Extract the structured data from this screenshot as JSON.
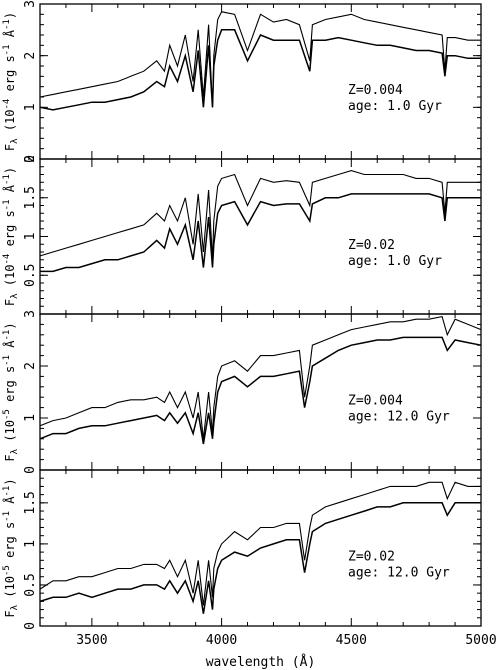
{
  "chart_data": [
    {
      "type": "line",
      "xlim": [
        3300,
        5000
      ],
      "ylim": [
        0,
        3
      ],
      "yticks": [
        "0",
        "1",
        "2",
        "3"
      ],
      "ylabel": "F_λ (10^-4 erg s^-1 Å^-1)",
      "annotation": [
        "Z=0.004",
        "age:  1.0 Gyr"
      ],
      "series": [
        {
          "x": [
            3300,
            3350,
            3400,
            3450,
            3500,
            3550,
            3600,
            3650,
            3700,
            3750,
            3780,
            3800,
            3830,
            3860,
            3890,
            3910,
            3930,
            3950,
            3965,
            3970,
            3985,
            4000,
            4050,
            4100,
            4150,
            4200,
            4250,
            4300,
            4340,
            4350,
            4400,
            4450,
            4500,
            4550,
            4600,
            4650,
            4700,
            4750,
            4800,
            4850,
            4861,
            4870,
            4900,
            4950,
            5000
          ],
          "y": [
            1.2,
            1.25,
            1.3,
            1.35,
            1.4,
            1.45,
            1.5,
            1.6,
            1.7,
            1.9,
            1.7,
            2.2,
            1.8,
            2.4,
            1.5,
            2.5,
            1.2,
            2.6,
            1.0,
            2.0,
            2.7,
            2.85,
            2.8,
            2.1,
            2.8,
            2.65,
            2.7,
            2.6,
            1.9,
            2.6,
            2.7,
            2.75,
            2.8,
            2.7,
            2.65,
            2.6,
            2.55,
            2.5,
            2.45,
            2.4,
            1.7,
            2.35,
            2.35,
            2.3,
            2.3
          ]
        },
        {
          "x": [
            3300,
            3350,
            3400,
            3450,
            3500,
            3550,
            3600,
            3650,
            3700,
            3750,
            3780,
            3800,
            3830,
            3860,
            3890,
            3910,
            3930,
            3950,
            3965,
            3970,
            3985,
            4000,
            4050,
            4100,
            4150,
            4200,
            4250,
            4300,
            4340,
            4350,
            4400,
            4450,
            4500,
            4550,
            4600,
            4650,
            4700,
            4750,
            4800,
            4850,
            4861,
            4870,
            4900,
            4950,
            5000
          ],
          "y": [
            1.0,
            0.95,
            1.0,
            1.05,
            1.1,
            1.1,
            1.15,
            1.2,
            1.3,
            1.5,
            1.4,
            1.8,
            1.5,
            2.0,
            1.3,
            2.1,
            1.0,
            2.2,
            1.0,
            1.8,
            2.3,
            2.5,
            2.5,
            1.9,
            2.4,
            2.3,
            2.3,
            2.3,
            1.7,
            2.3,
            2.3,
            2.35,
            2.3,
            2.25,
            2.2,
            2.2,
            2.15,
            2.1,
            2.1,
            2.05,
            1.6,
            2.0,
            2.0,
            1.95,
            1.95
          ]
        }
      ]
    },
    {
      "type": "line",
      "xlim": [
        3300,
        5000
      ],
      "ylim": [
        0,
        2
      ],
      "yticks": [
        "0.5",
        "1",
        "1.5",
        "2"
      ],
      "ylabel": "F_λ (10^-4 erg s^-1 Å^-1)",
      "annotation": [
        "Z=0.02",
        "age:  1.0 Gyr"
      ],
      "series": [
        {
          "x": [
            3300,
            3350,
            3400,
            3450,
            3500,
            3550,
            3600,
            3650,
            3700,
            3750,
            3780,
            3800,
            3830,
            3860,
            3890,
            3910,
            3930,
            3950,
            3965,
            3970,
            3985,
            4000,
            4050,
            4100,
            4150,
            4200,
            4250,
            4300,
            4340,
            4350,
            4400,
            4450,
            4500,
            4550,
            4600,
            4650,
            4700,
            4750,
            4800,
            4850,
            4861,
            4870,
            4900,
            4950,
            5000
          ],
          "y": [
            0.75,
            0.8,
            0.85,
            0.9,
            0.95,
            1.0,
            1.05,
            1.1,
            1.15,
            1.3,
            1.2,
            1.4,
            1.2,
            1.5,
            0.9,
            1.55,
            0.8,
            1.6,
            0.7,
            1.2,
            1.65,
            1.75,
            1.8,
            1.4,
            1.75,
            1.7,
            1.72,
            1.7,
            1.4,
            1.7,
            1.75,
            1.8,
            1.85,
            1.8,
            1.8,
            1.8,
            1.8,
            1.75,
            1.75,
            1.7,
            1.3,
            1.7,
            1.7,
            1.7,
            1.7
          ]
        },
        {
          "x": [
            3300,
            3350,
            3400,
            3450,
            3500,
            3550,
            3600,
            3650,
            3700,
            3750,
            3780,
            3800,
            3830,
            3860,
            3890,
            3910,
            3930,
            3950,
            3965,
            3970,
            3985,
            4000,
            4050,
            4100,
            4150,
            4200,
            4250,
            4300,
            4340,
            4350,
            4400,
            4450,
            4500,
            4550,
            4600,
            4650,
            4700,
            4750,
            4800,
            4850,
            4861,
            4870,
            4900,
            4950,
            5000
          ],
          "y": [
            0.55,
            0.55,
            0.6,
            0.6,
            0.65,
            0.7,
            0.7,
            0.75,
            0.8,
            0.95,
            0.85,
            1.1,
            0.9,
            1.15,
            0.7,
            1.2,
            0.6,
            1.25,
            0.6,
            0.9,
            1.3,
            1.4,
            1.45,
            1.15,
            1.45,
            1.4,
            1.42,
            1.42,
            1.2,
            1.42,
            1.5,
            1.5,
            1.55,
            1.55,
            1.55,
            1.55,
            1.55,
            1.55,
            1.55,
            1.5,
            1.2,
            1.5,
            1.5,
            1.5,
            1.5
          ]
        }
      ]
    },
    {
      "type": "line",
      "xlim": [
        3300,
        5000
      ],
      "ylim": [
        0,
        3
      ],
      "yticks": [
        "0",
        "1",
        "2",
        "3"
      ],
      "ylabel": "F_λ (10^-5 erg s^-1 Å^-1)",
      "annotation": [
        "Z=0.004",
        "age: 12.0 Gyr"
      ],
      "series": [
        {
          "x": [
            3300,
            3350,
            3400,
            3450,
            3500,
            3550,
            3600,
            3650,
            3700,
            3750,
            3780,
            3800,
            3830,
            3860,
            3890,
            3910,
            3930,
            3950,
            3965,
            3970,
            3985,
            4000,
            4050,
            4100,
            4150,
            4200,
            4250,
            4300,
            4320,
            4340,
            4350,
            4400,
            4450,
            4500,
            4550,
            4600,
            4650,
            4700,
            4750,
            4800,
            4850,
            4870,
            4900,
            4950,
            5000
          ],
          "y": [
            0.85,
            0.95,
            1.0,
            1.1,
            1.2,
            1.2,
            1.3,
            1.35,
            1.35,
            1.4,
            1.3,
            1.5,
            1.2,
            1.5,
            1.0,
            1.5,
            0.6,
            1.5,
            0.7,
            1.2,
            1.8,
            2.0,
            2.1,
            1.9,
            2.2,
            2.2,
            2.25,
            2.3,
            1.4,
            2.0,
            2.4,
            2.5,
            2.6,
            2.7,
            2.75,
            2.8,
            2.85,
            2.85,
            2.9,
            2.9,
            2.95,
            2.6,
            2.9,
            2.8,
            2.7
          ]
        },
        {
          "x": [
            3300,
            3350,
            3400,
            3450,
            3500,
            3550,
            3600,
            3650,
            3700,
            3750,
            3780,
            3800,
            3830,
            3860,
            3890,
            3910,
            3930,
            3950,
            3965,
            3970,
            3985,
            4000,
            4050,
            4100,
            4150,
            4200,
            4250,
            4300,
            4320,
            4340,
            4350,
            4400,
            4450,
            4500,
            4550,
            4600,
            4650,
            4700,
            4750,
            4800,
            4850,
            4870,
            4900,
            4950,
            5000
          ],
          "y": [
            0.6,
            0.7,
            0.7,
            0.8,
            0.85,
            0.85,
            0.9,
            0.95,
            1.0,
            1.05,
            0.95,
            1.1,
            0.9,
            1.1,
            0.7,
            1.1,
            0.5,
            1.1,
            0.6,
            0.9,
            1.5,
            1.7,
            1.8,
            1.6,
            1.8,
            1.8,
            1.85,
            1.9,
            1.2,
            1.7,
            2.0,
            2.15,
            2.3,
            2.4,
            2.45,
            2.5,
            2.5,
            2.55,
            2.55,
            2.55,
            2.55,
            2.3,
            2.5,
            2.45,
            2.4
          ]
        }
      ]
    },
    {
      "type": "line",
      "xlim": [
        3300,
        5000
      ],
      "ylim": [
        0,
        1.9
      ],
      "yticks": [
        "0",
        "0.5",
        "1",
        "1.5"
      ],
      "xticks": [
        "3500",
        "4000",
        "4500",
        "5000"
      ],
      "ylabel": "F_λ (10^-5 erg s^-1 Å^-1)",
      "xlabel": "wavelength (Å)",
      "annotation": [
        "Z=0.02",
        "age: 12.0 Gyr"
      ],
      "series": [
        {
          "x": [
            3300,
            3350,
            3400,
            3450,
            3500,
            3550,
            3600,
            3650,
            3700,
            3750,
            3780,
            3800,
            3830,
            3860,
            3890,
            3910,
            3930,
            3950,
            3965,
            3970,
            3985,
            4000,
            4050,
            4100,
            4150,
            4200,
            4250,
            4300,
            4320,
            4340,
            4350,
            4400,
            4450,
            4500,
            4550,
            4600,
            4650,
            4700,
            4750,
            4800,
            4850,
            4870,
            4900,
            4950,
            5000
          ],
          "y": [
            0.45,
            0.55,
            0.55,
            0.6,
            0.6,
            0.65,
            0.7,
            0.7,
            0.75,
            0.75,
            0.7,
            0.8,
            0.6,
            0.8,
            0.4,
            0.8,
            0.25,
            0.8,
            0.35,
            0.7,
            0.9,
            1.0,
            1.15,
            1.05,
            1.2,
            1.2,
            1.25,
            1.25,
            0.8,
            1.2,
            1.35,
            1.45,
            1.5,
            1.55,
            1.6,
            1.65,
            1.7,
            1.7,
            1.7,
            1.75,
            1.75,
            1.55,
            1.75,
            1.7,
            1.7
          ]
        },
        {
          "x": [
            3300,
            3350,
            3400,
            3450,
            3500,
            3550,
            3600,
            3650,
            3700,
            3750,
            3780,
            3800,
            3830,
            3860,
            3890,
            3910,
            3930,
            3950,
            3965,
            3970,
            3985,
            4000,
            4050,
            4100,
            4150,
            4200,
            4250,
            4300,
            4320,
            4340,
            4350,
            4400,
            4450,
            4500,
            4550,
            4600,
            4650,
            4700,
            4750,
            4800,
            4850,
            4870,
            4900,
            4950,
            5000
          ],
          "y": [
            0.3,
            0.35,
            0.35,
            0.4,
            0.35,
            0.4,
            0.45,
            0.45,
            0.5,
            0.5,
            0.45,
            0.55,
            0.4,
            0.55,
            0.3,
            0.55,
            0.15,
            0.55,
            0.2,
            0.45,
            0.7,
            0.8,
            0.9,
            0.85,
            0.95,
            1.0,
            1.05,
            1.05,
            0.65,
            1.0,
            1.15,
            1.25,
            1.3,
            1.35,
            1.4,
            1.45,
            1.45,
            1.5,
            1.5,
            1.5,
            1.5,
            1.35,
            1.5,
            1.5,
            1.5
          ]
        }
      ]
    }
  ]
}
